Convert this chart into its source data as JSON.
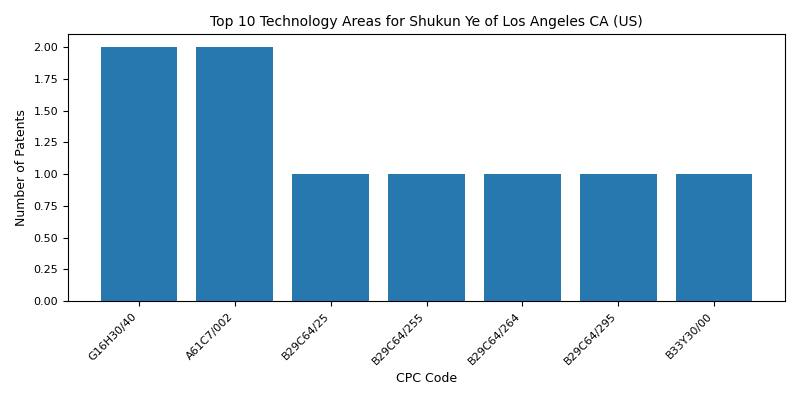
{
  "title": "Top 10 Technology Areas for Shukun Ye of Los Angeles CA (US)",
  "xlabel": "CPC Code",
  "ylabel": "Number of Patents",
  "categories": [
    "G16H30/40",
    "A61C7/002",
    "B29C64/25",
    "B29C64/255",
    "B29C64/264",
    "B29C64/295",
    "B33Y30/00"
  ],
  "values": [
    2,
    2,
    1,
    1,
    1,
    1,
    1
  ],
  "bar_color": "#2878b0",
  "ylim": [
    0,
    2.1
  ],
  "yticks": [
    0.0,
    0.25,
    0.5,
    0.75,
    1.0,
    1.25,
    1.5,
    1.75,
    2.0
  ],
  "figsize": [
    8.0,
    4.0
  ],
  "dpi": 100,
  "title_fontsize": 10,
  "label_fontsize": 9,
  "tick_fontsize": 8
}
